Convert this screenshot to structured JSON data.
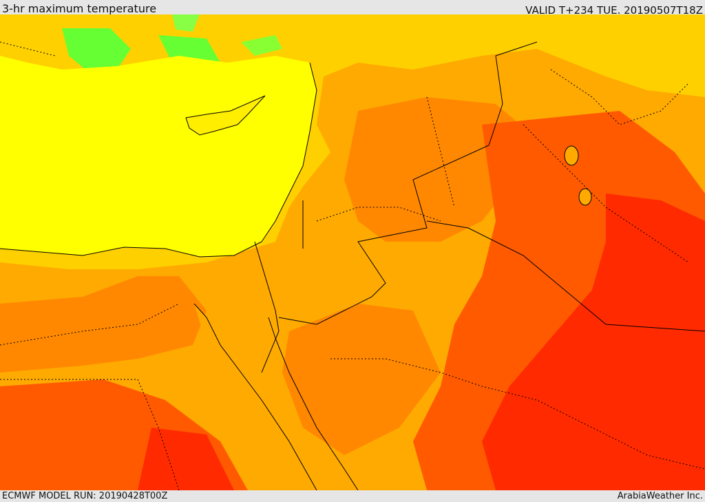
{
  "header": {
    "title": "3-hr maximum temperature",
    "valid": "VALID T+234 TUE. 20190507T18Z"
  },
  "footer": {
    "model_run": "ECMWF MODEL RUN: 20190428T00Z",
    "credit": "ArabiaWeather Inc."
  },
  "colors": {
    "background_bar": "#e6e6e6",
    "sea_yellow": "#ffff00",
    "light_orange": "#ffd000",
    "orange": "#ffaa00",
    "dark_orange": "#ff8800",
    "red_orange": "#ff5a00",
    "red": "#ff2a00",
    "green": "#66ff33",
    "border_line": "#000000"
  }
}
